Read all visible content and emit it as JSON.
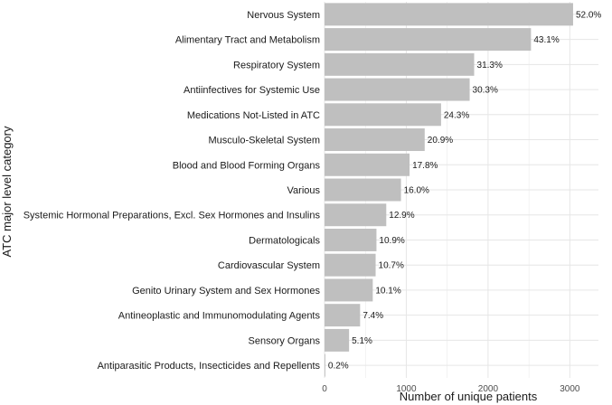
{
  "chart_data": {
    "type": "bar",
    "orientation": "horizontal",
    "title": "",
    "xlabel": "Number of unique patients",
    "ylabel": "ATC major level category",
    "xlim": [
      0,
      3350
    ],
    "xticks": [
      0,
      1000,
      2000,
      3000
    ],
    "grid": true,
    "bar_color": "#bfbfbf",
    "grid_color": "#e6e6e6",
    "categories": [
      "Nervous System",
      "Alimentary Tract and Metabolism",
      "Respiratory System",
      "Antiinfectives for Systemic Use",
      "Medications Not-Listed in ATC",
      "Musculo-Skeletal System",
      "Blood and Blood Forming Organs",
      "Various",
      "Systemic Hormonal Preparations, Excl. Sex Hormones and Insulins",
      "Dermatologicals",
      "Cardiovascular System",
      "Genito Urinary System and Sex Hormones",
      "Antineoplastic and Immunomodulating Agents",
      "Sensory Organs",
      "Antiparasitic Products, Insecticides and Repellents"
    ],
    "values": [
      3040,
      2525,
      1830,
      1775,
      1425,
      1225,
      1040,
      935,
      755,
      635,
      625,
      590,
      435,
      300,
      10
    ],
    "labels": [
      "52.0%",
      "43.1%",
      "31.3%",
      "30.3%",
      "24.3%",
      "20.9%",
      "17.8%",
      "16.0%",
      "12.9%",
      "10.9%",
      "10.7%",
      "10.1%",
      "7.4%",
      "5.1%",
      "0.2%"
    ]
  }
}
